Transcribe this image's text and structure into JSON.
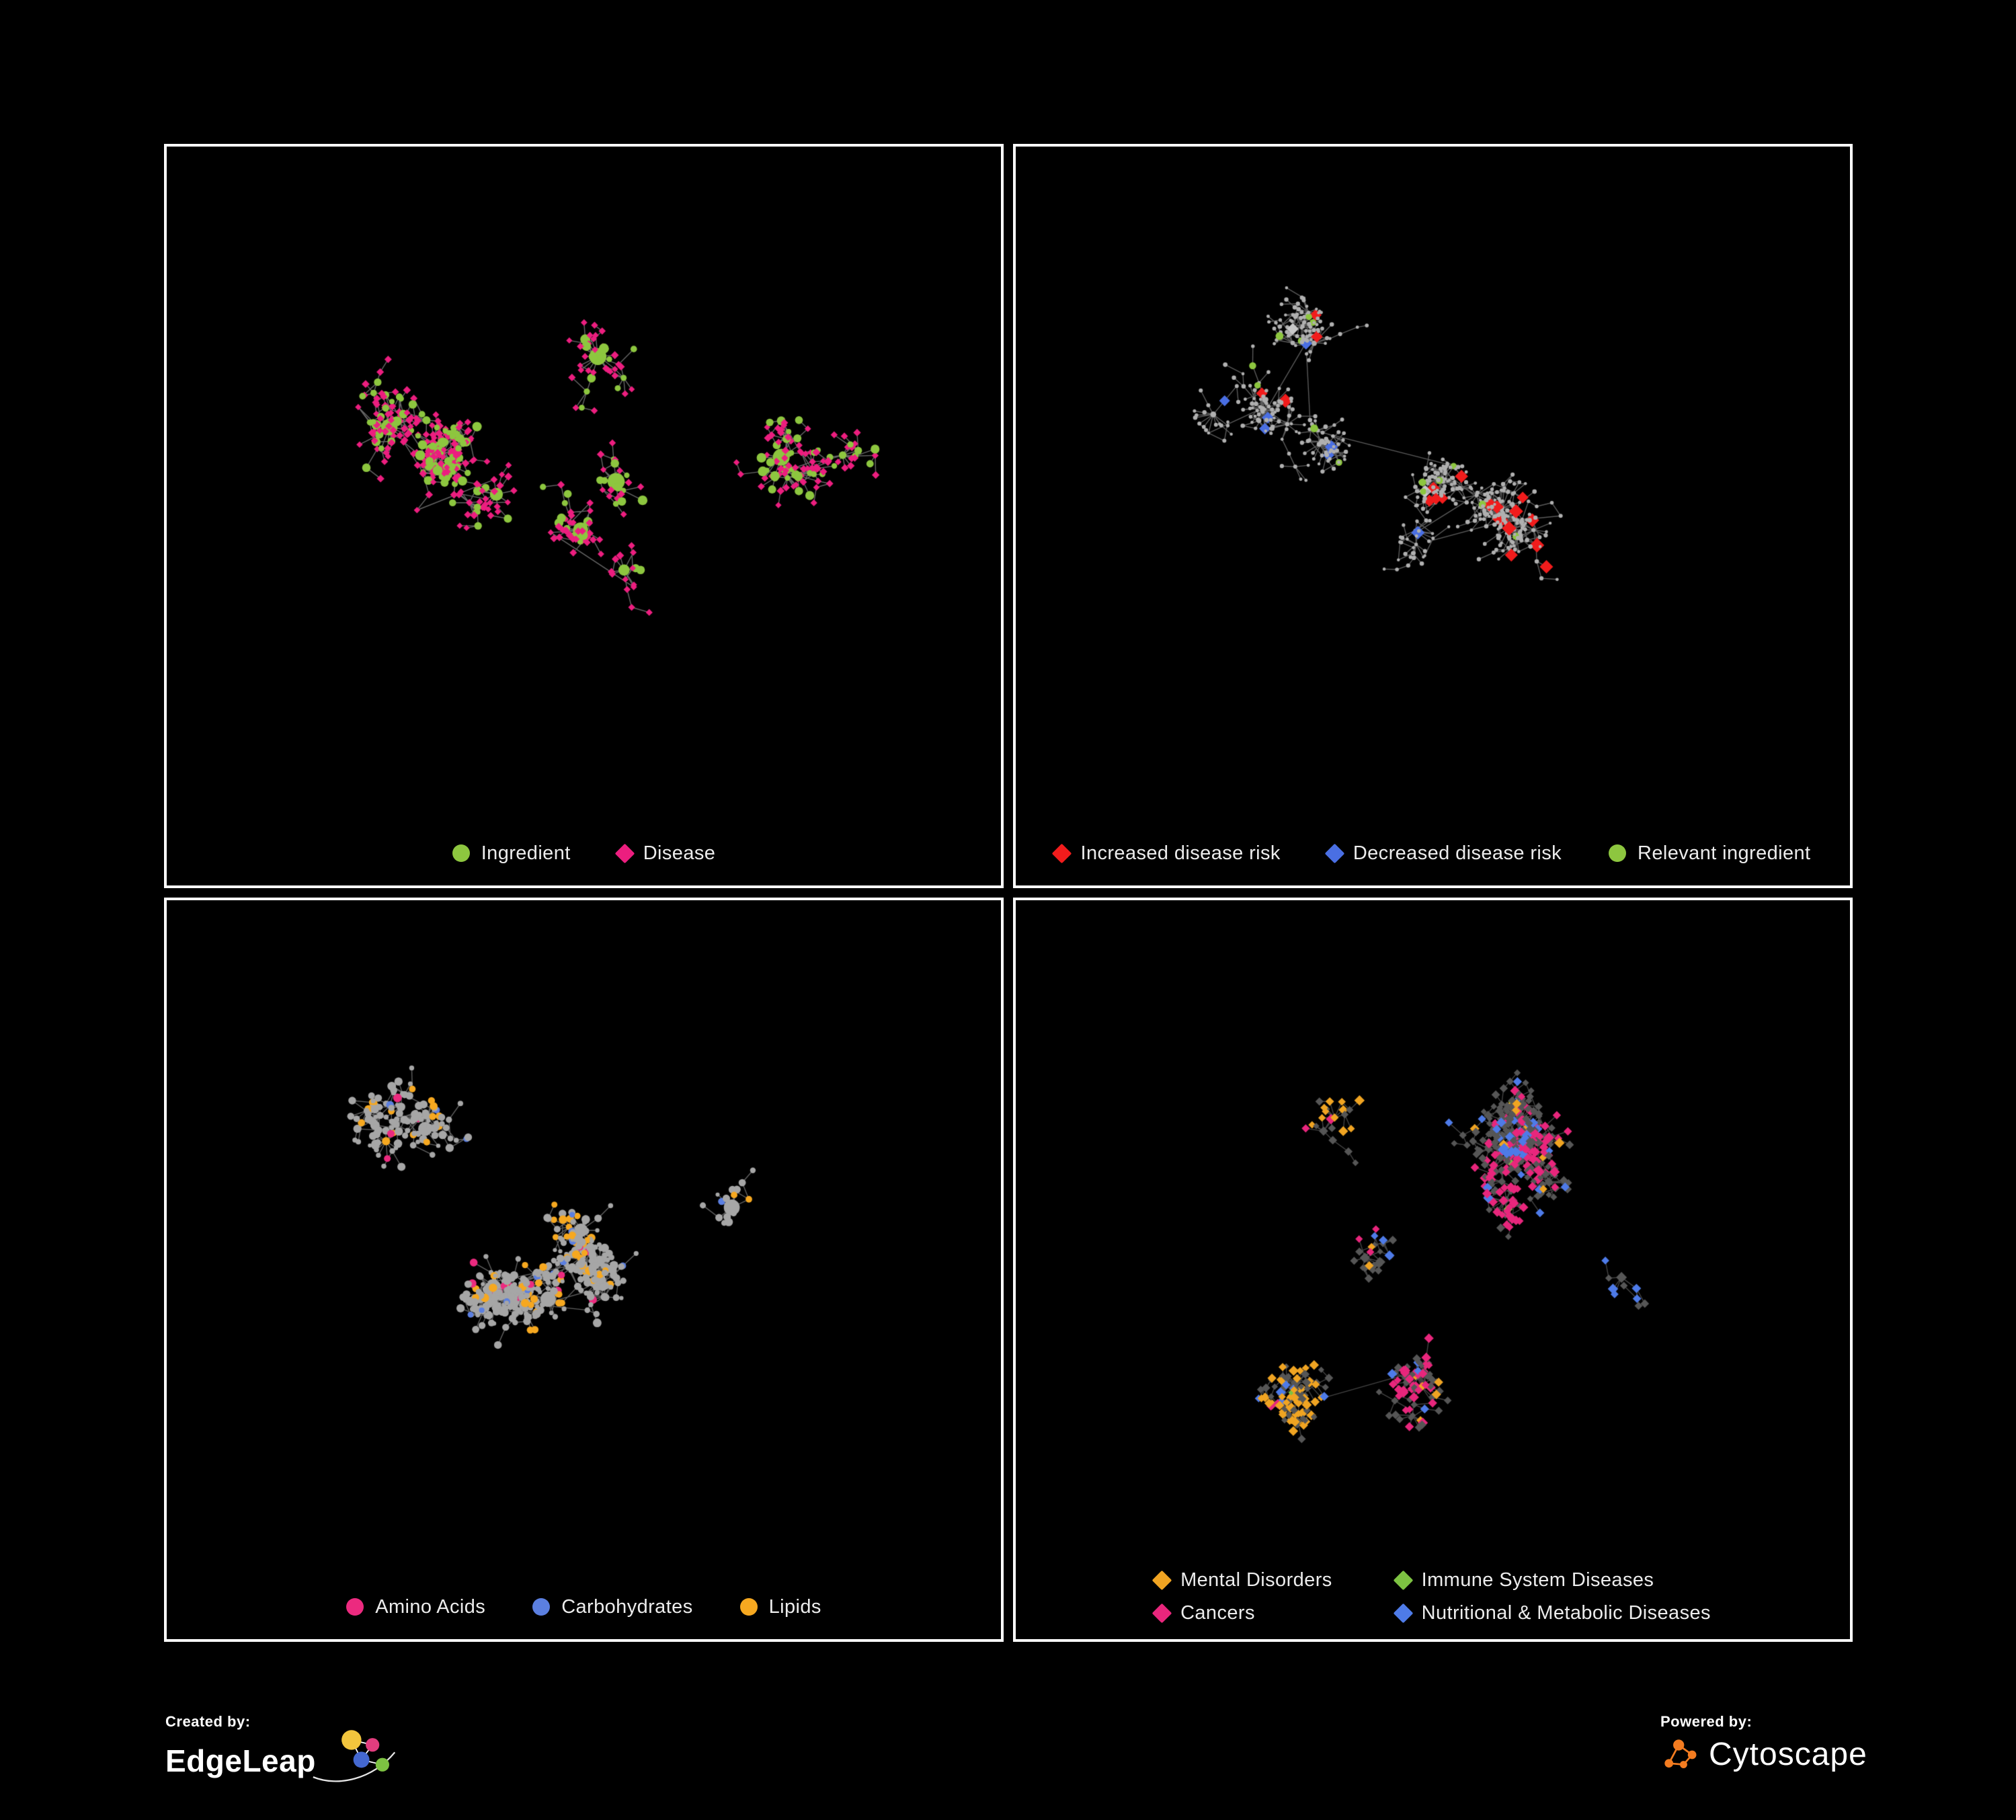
{
  "branding": {
    "created_by_label": "Created by:",
    "created_by_name": "EdgeLeap",
    "powered_by_label": "Powered by:",
    "powered_by_name": "Cytoscape"
  },
  "colors": {
    "background": "#000000",
    "panel_border": "#ffffff",
    "legend_text": "#ececec",
    "cytoscape_orange": "#f47c20"
  },
  "panels": [
    {
      "id": "ingredient-disease",
      "legend_columns": 1,
      "legend": [
        {
          "label": "Ingredient",
          "color": "#8dc63f",
          "shape": "circle"
        },
        {
          "label": "Disease",
          "color": "#ec1e7f",
          "shape": "diamond"
        }
      ],
      "graph": {
        "seed": 7,
        "nodes": 520,
        "clusters": 8,
        "hub_attach": 0.3,
        "recent_pow": 0.35,
        "burst": 0.07,
        "step": [
          14,
          34
        ],
        "hub_size": [
          8,
          13
        ],
        "hub_category": 0,
        "cluster_bias": 0,
        "cluster_dominant": null,
        "color_radius": null,
        "edge_color": "#8f8f8f",
        "edge_alpha": 0.72,
        "categories": [
          {
            "name": "ingredient",
            "color": "#8dc63f",
            "shape": "circle",
            "weight": 0.34,
            "size": [
              4,
              7.5
            ]
          },
          {
            "name": "disease",
            "color": "#ec1e7f",
            "shape": "diamond",
            "weight": 0.66,
            "size": [
              3.5,
              4.6
            ]
          }
        ]
      }
    },
    {
      "id": "disease-risk",
      "legend_columns": 1,
      "legend": [
        {
          "label": "Increased disease risk",
          "color": "#f11c1c",
          "shape": "diamond"
        },
        {
          "label": "Decreased disease risk",
          "color": "#4a6fe3",
          "shape": "diamond"
        },
        {
          "label": "Relevant ingredient",
          "color": "#8dc63f",
          "shape": "circle"
        }
      ],
      "graph": {
        "seed": 13,
        "nodes": 560,
        "clusters": 9,
        "hub_attach": 0.18,
        "recent_pow": 0.3,
        "burst": 0.05,
        "step": [
          13,
          30
        ],
        "hub_size": [
          3,
          4.5
        ],
        "hub_category": 0,
        "cluster_bias": 0,
        "cluster_dominant": null,
        "color_radius": 0.55,
        "edge_color": "#8a8a8a",
        "edge_alpha": 0.65,
        "categories": [
          {
            "name": "node",
            "color": "#b0b0b0",
            "shape": "circle",
            "weight": 0.9,
            "size": [
              2.2,
              3.4
            ]
          },
          {
            "name": "increased-risk",
            "color": "#f11c1c",
            "shape": "diamond",
            "weight": 0.045,
            "size": [
              6.5,
              8.5
            ]
          },
          {
            "name": "decreased-risk",
            "color": "#4a6fe3",
            "shape": "diamond",
            "weight": 0.015,
            "size": [
              6,
              8
            ]
          },
          {
            "name": "relevant-ingredient",
            "color": "#8dc63f",
            "shape": "circle",
            "weight": 0.03,
            "size": [
              4.5,
              6
            ]
          },
          {
            "name": "neutral",
            "color": "#c9c9c9",
            "shape": "diamond",
            "weight": 0.01,
            "size": [
              6,
              8
            ]
          }
        ]
      }
    },
    {
      "id": "nutrient-classes",
      "legend_columns": 1,
      "legend": [
        {
          "label": "Amino Acids",
          "color": "#ec2a7f",
          "shape": "circle"
        },
        {
          "label": "Carbohydrates",
          "color": "#5b7fe0",
          "shape": "circle"
        },
        {
          "label": "Lipids",
          "color": "#f6a820",
          "shape": "circle"
        }
      ],
      "graph": {
        "seed": 29,
        "nodes": 540,
        "clusters": 8,
        "hub_attach": 0.28,
        "recent_pow": 0.35,
        "burst": 0.06,
        "step": [
          14,
          32
        ],
        "hub_size": [
          7.5,
          12
        ],
        "hub_category": 0,
        "cluster_bias": 0.3,
        "cluster_dominant": [
          0,
          0,
          0,
          3,
          3,
          0,
          0,
          0
        ],
        "color_radius": null,
        "edge_color": "#8d8d8d",
        "edge_alpha": 0.68,
        "categories": [
          {
            "name": "other",
            "color": "#a6a6a6",
            "shape": "circle",
            "weight": 0.8,
            "size": [
              3,
              6.5
            ]
          },
          {
            "name": "amino-acids",
            "color": "#ec2a7f",
            "shape": "circle",
            "weight": 0.06,
            "size": [
              4.5,
              6.5
            ]
          },
          {
            "name": "carbohydrates",
            "color": "#5b7fe0",
            "shape": "circle",
            "weight": 0.045,
            "size": [
              4,
              6
            ]
          },
          {
            "name": "lipids",
            "color": "#f6a820",
            "shape": "circle",
            "weight": 0.095,
            "size": [
              4.5,
              6.5
            ]
          }
        ]
      }
    },
    {
      "id": "disease-classes",
      "legend_columns": 2,
      "legend": [
        {
          "label": "Mental Disorders",
          "color": "#f0a422",
          "shape": "diamond"
        },
        {
          "label": "Immune System Diseases",
          "color": "#7dc242",
          "shape": "diamond"
        },
        {
          "label": "Cancers",
          "color": "#e8267c",
          "shape": "diamond"
        },
        {
          "label": "Nutritional & Metabolic Diseases",
          "color": "#4e7be8",
          "shape": "diamond"
        }
      ],
      "graph": {
        "seed": 41,
        "nodes": 620,
        "clusters": 9,
        "hub_attach": 0.24,
        "recent_pow": 0.32,
        "burst": 0.06,
        "step": [
          13,
          30
        ],
        "hub_size": [
          4.5,
          6.5
        ],
        "hub_category": 0,
        "cluster_bias": 0.45,
        "cluster_dominant": [
          1,
          1,
          0,
          3,
          0,
          3,
          4,
          0,
          4
        ],
        "color_radius": null,
        "edge_color": "#6f6f6f",
        "edge_alpha": 0.6,
        "categories": [
          {
            "name": "other-disease",
            "color": "#565656",
            "shape": "diamond",
            "weight": 0.78,
            "size": [
              3.4,
              5
            ]
          },
          {
            "name": "mental-disorders",
            "color": "#f0a422",
            "shape": "diamond",
            "weight": 0.05,
            "size": [
              4.2,
              6
            ]
          },
          {
            "name": "immune-system-diseases",
            "color": "#7dc242",
            "shape": "diamond",
            "weight": 0.02,
            "size": [
              4.2,
              5.5
            ]
          },
          {
            "name": "cancers",
            "color": "#e8267c",
            "shape": "diamond",
            "weight": 0.07,
            "size": [
              4.2,
              6
            ]
          },
          {
            "name": "nutritional-metabolic",
            "color": "#4e7be8",
            "shape": "diamond",
            "weight": 0.08,
            "size": [
              4.2,
              6
            ]
          }
        ]
      }
    }
  ]
}
